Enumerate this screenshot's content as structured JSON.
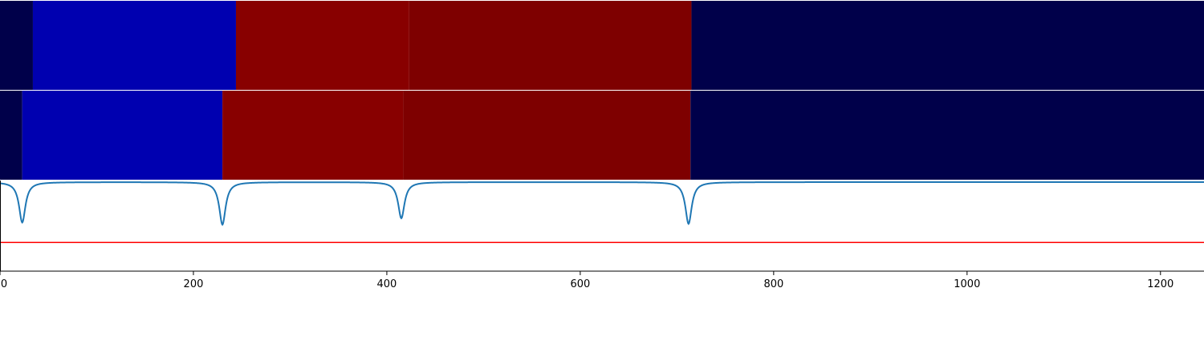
{
  "chart_data": {
    "type": "heatmap",
    "x_range": [
      0,
      1245
    ],
    "x_ticks": [
      0,
      200,
      400,
      600,
      800,
      1000,
      1200
    ],
    "x_tick_labels": [
      "0",
      "200",
      "400",
      "600",
      "800",
      "1000",
      "1200"
    ],
    "segment_colors": {
      "dark_navy": "#00004a",
      "blue": "#0000b0",
      "red": "#880000",
      "dark_red": "#7e0000"
    },
    "rows": [
      {
        "segments": [
          {
            "start": 0,
            "end": 34,
            "color": "#00004a"
          },
          {
            "start": 34,
            "end": 244,
            "color": "#0000b0"
          },
          {
            "start": 244,
            "end": 423,
            "color": "#880000"
          },
          {
            "start": 423,
            "end": 715,
            "color": "#7e0000"
          },
          {
            "start": 715,
            "end": 1245,
            "color": "#00004a"
          }
        ]
      },
      {
        "segments": [
          {
            "start": 0,
            "end": 23,
            "color": "#00004a"
          },
          {
            "start": 23,
            "end": 230,
            "color": "#0000b0"
          },
          {
            "start": 230,
            "end": 417,
            "color": "#880000"
          },
          {
            "start": 417,
            "end": 714,
            "color": "#7e0000"
          },
          {
            "start": 714,
            "end": 1245,
            "color": "#00004a"
          }
        ]
      }
    ],
    "signal": {
      "color": "#1f77b4",
      "baseline": 0,
      "y_range": [
        -1.05,
        0.02
      ],
      "dips": [
        {
          "x": 23,
          "depth": 0.95
        },
        {
          "x": 230,
          "depth": 1.0
        },
        {
          "x": 415,
          "depth": 0.85
        },
        {
          "x": 712,
          "depth": 0.98
        }
      ]
    },
    "threshold": {
      "color": "#ff0000",
      "value": -1.42
    }
  }
}
